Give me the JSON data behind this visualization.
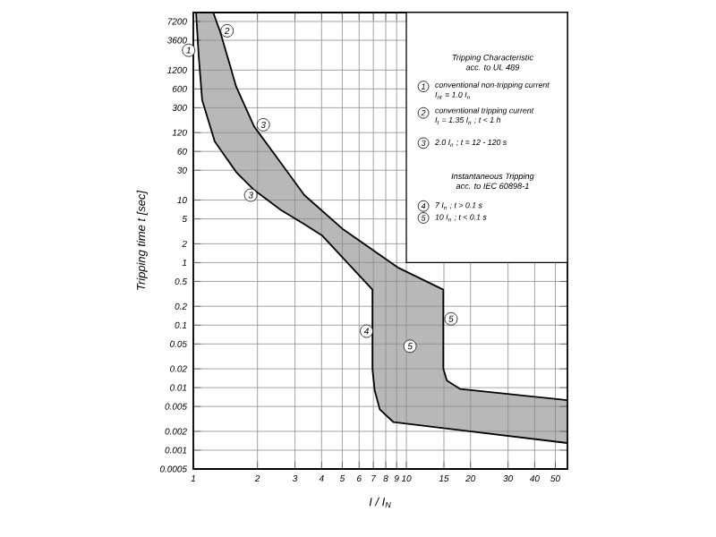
{
  "chart_data": {
    "type": "line",
    "xlabel": "I / I$_{N}$",
    "ylabel": "Tripping time t [sec]",
    "log": "xy",
    "grid": true,
    "marker": "none",
    "line_style": "solid",
    "xlim": [
      1,
      57
    ],
    "ylim": [
      0.0005,
      10000
    ],
    "xticks": [
      1,
      2,
      3,
      4,
      5,
      6,
      7,
      8,
      9,
      10,
      15,
      20,
      30,
      40,
      50
    ],
    "yticks": [
      0.0005,
      0.001,
      0.002,
      0.005,
      0.01,
      0.02,
      0.05,
      0.1,
      0.2,
      0.5,
      1,
      2,
      5,
      10,
      30,
      60,
      120,
      300,
      600,
      1200,
      3600,
      7200
    ],
    "series": [
      {
        "color": "#000000",
        "x": [
          1.03,
          1.06,
          1.1,
          1.26,
          1.59,
          1.93,
          2.58,
          3.32,
          4.03,
          6.93,
          6.93,
          7.1,
          7.5,
          8.7,
          57
        ],
        "values": [
          10000,
          2000,
          400,
          87,
          28,
          14.5,
          6.9,
          4.1,
          2.7,
          0.37,
          0.02,
          0.009,
          0.0045,
          0.0028,
          0.0013
        ]
      },
      {
        "color": "#000000",
        "x": [
          1.24,
          1.34,
          1.59,
          1.93,
          2.58,
          3.32,
          5,
          9.2,
          14.9,
          14.9,
          15.5,
          17.9,
          57
        ],
        "values": [
          10000,
          4800,
          650,
          150,
          39,
          12,
          3.5,
          0.82,
          0.37,
          0.02,
          0.013,
          0.0095,
          0.0063
        ]
      }
    ],
    "annotations": [
      {
        "text": "1",
        "x": 1,
        "y": 3600
      },
      {
        "text": "2",
        "x": 1.44,
        "y": 5100
      },
      {
        "text": "3",
        "x": 2.13,
        "y": 160
      },
      {
        "text": "3",
        "x": 1.86,
        "y": 12
      },
      {
        "text": "4",
        "x": 6.5,
        "y": 0.08
      },
      {
        "text": "5",
        "x": 10.4,
        "y": 0.046
      },
      {
        "text": "5",
        "x": 16.2,
        "y": 0.126
      },
      "Tripping Characteristic",
      "acc. to UL 489",
      "1",
      "conventional non-tripping current",
      "I$_{nt}$ = 1.0 I$_{n}$",
      "2",
      "conventional tripping current",
      "I$_{t}$ = 1.35 I$_{n}$ ; t < 1 h",
      "3",
      "2.0 I$_{n}$ ; t = 12 - 120 s",
      "Instantaneous Tripping",
      "acc. to IEC 60898-1",
      "4",
      "7 I$_{n}$ ; t > 0.1 s",
      "5",
      "10 I$_{n}$ ; t < 0.1 s"
    ]
  }
}
